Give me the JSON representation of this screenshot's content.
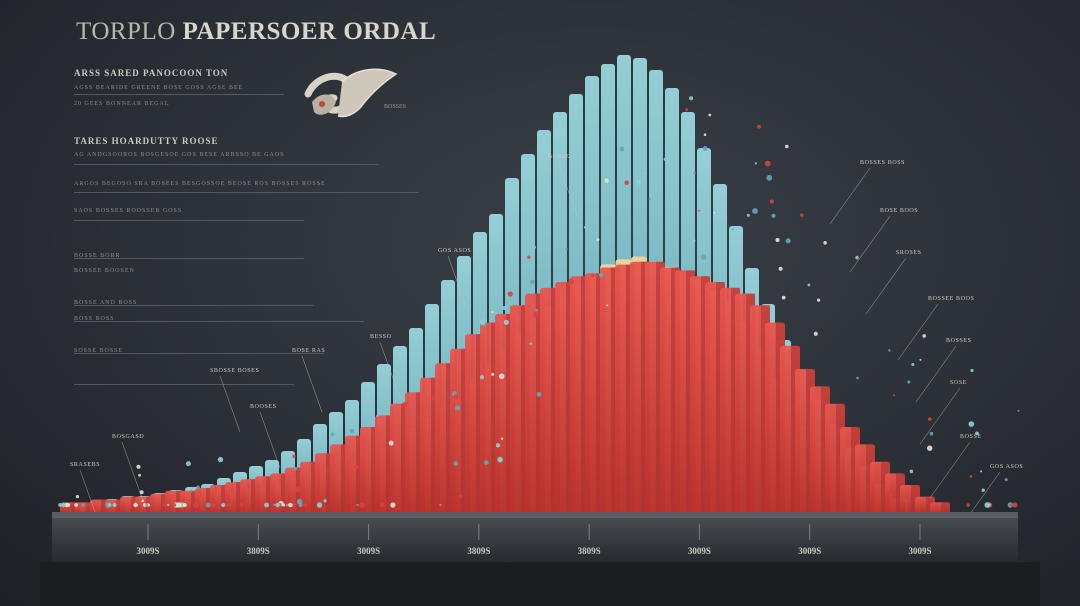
{
  "chart_data": {
    "type": "bar",
    "title_part1": "TORPLO",
    "title_part2": "PAPERSOER ORDAL",
    "text_block": {
      "heading1": "ARSS SARED PANOCOON TON",
      "lines1": [
        "AGSS BEARIDE GREENE BOSE GOSS AGSE BEE",
        "20 GEES BONNEAR BEGAL"
      ],
      "heading2": "TARES HOARDUTTY ROOSE",
      "lines2": [
        "AG ANDGSOOROS BOSGESOE GOS BESE ARBSSO BE GAOS",
        "ARGOS BEGOSO SRA BOSEES BESGOSSOE BEOSE ROS BOSSES ROSSE",
        "SAOS BOSSES ROOSSEB GOSS"
      ],
      "small_labels": [
        "BOSSE BORR",
        "BOSSEE BOOSEN",
        "BOSSE AND BOSS",
        "BOSS BOSS",
        "SOSSE BOSSE"
      ]
    },
    "x_tick_labels": [
      "3009S",
      "3809S",
      "3009S",
      "3809S",
      "3809S",
      "3009S",
      "3009S",
      "3009S"
    ],
    "series": [
      {
        "name": "",
        "color": "#d8433f",
        "values": [
          4,
          4,
          5,
          5,
          6,
          6,
          7,
          8,
          8,
          9,
          10,
          11,
          12,
          13,
          14,
          16,
          18,
          21,
          24,
          27,
          30,
          34,
          38,
          42,
          47,
          52,
          57,
          62,
          66,
          69,
          72,
          76,
          78,
          80,
          82,
          83,
          85,
          86,
          87,
          87,
          85,
          84,
          82,
          80,
          78,
          76,
          72,
          66,
          58,
          50,
          44,
          38,
          30,
          24,
          18,
          14,
          10,
          6,
          4
        ]
      },
      {
        "name": "",
        "color": "#e8c98f",
        "values": [
          3,
          4,
          4,
          5,
          5,
          6,
          7,
          7,
          8,
          9,
          9,
          10,
          11,
          12,
          14,
          16,
          18,
          20,
          23,
          26,
          29,
          33,
          37,
          41,
          46,
          52,
          58,
          64,
          70,
          75,
          80,
          84,
          88,
          92,
          96,
          98,
          99,
          97,
          95,
          93,
          90,
          86,
          82,
          74,
          64,
          52,
          42,
          34,
          28,
          22,
          16,
          12,
          8,
          6
        ]
      },
      {
        "name": "",
        "color": "#8ecfd8",
        "values": [
          4,
          5,
          6,
          6,
          7,
          8,
          9,
          10,
          12,
          14,
          16,
          18,
          21,
          25,
          30,
          34,
          38,
          44,
          50,
          56,
          62,
          70,
          78,
          86,
          94,
          100,
          112,
          120,
          128,
          134,
          140,
          146,
          150,
          153,
          152,
          148,
          142,
          134,
          122,
          110,
          96,
          82,
          70,
          58,
          48,
          38,
          30,
          22,
          16,
          10
        ]
      }
    ],
    "callout_labels": [
      "BOSSE",
      "GOS ASOS",
      "BESSO",
      "BOSE RAS",
      "SBOSSE BOSES",
      "BOOSES",
      "BOSGASD",
      "SRASEBS",
      "BOSSES BOSS",
      "BOSE BOOS",
      "SROSES",
      "BOSSEE BOOS",
      "BOSSES",
      "SOSE"
    ],
    "colors": {
      "background": "#2b2f36",
      "red": "#d8433f",
      "red_dark": "#a92f2d",
      "sand": "#e8c98f",
      "cyan": "#8ecfd8",
      "base": "#3a3d43",
      "text": "#d9d5cc"
    }
  }
}
